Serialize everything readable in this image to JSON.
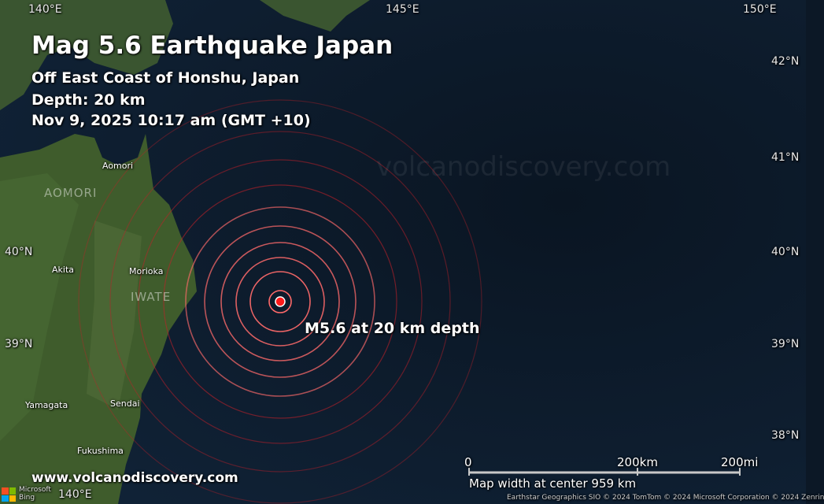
{
  "header": {
    "title": "Mag 5.6 Earthquake Japan",
    "location": "Off East Coast of Honshu, Japan",
    "depth": "Depth: 20 km",
    "datetime": "Nov 9, 2025 10:17 am (GMT +10)"
  },
  "grid": {
    "lon_top": [
      "140°E",
      "145°E",
      "150°E"
    ],
    "lon_bottom": "140°E",
    "lat_right": [
      "42°N",
      "41°N",
      "40°N",
      "39°N",
      "38°N"
    ],
    "lat_left": [
      "40°N",
      "39°N"
    ]
  },
  "places": [
    "Aomori",
    "Akita",
    "Morioka",
    "Yamagata",
    "Sendai",
    "Fukushima"
  ],
  "regions": [
    "AOMORI",
    "IWATE"
  ],
  "epicenter": {
    "label": "M5.6 at 20 km depth",
    "magnitude": 5.6,
    "depth_km": 20,
    "color": "#ff1a1a",
    "ring_color": "#c0202a"
  },
  "watermark": "volcanodiscovery.com",
  "site": "www.volcanodiscovery.com",
  "scale": {
    "zero": "0",
    "km": "200km",
    "mi": "200mi",
    "width_text": "Map width at center 959 km"
  },
  "attribution": "Earthstar Geographics  SIO © 2024 TomTom © 2024 Microsoft Corporation © 2024 Zenrin",
  "logo": {
    "text": "Microsoft Bing",
    "colors": [
      "#f25022",
      "#7fba00",
      "#00a4ef",
      "#ffb900"
    ]
  },
  "colors": {
    "ocean": "#0c1826",
    "land": "#3d5a2a"
  }
}
